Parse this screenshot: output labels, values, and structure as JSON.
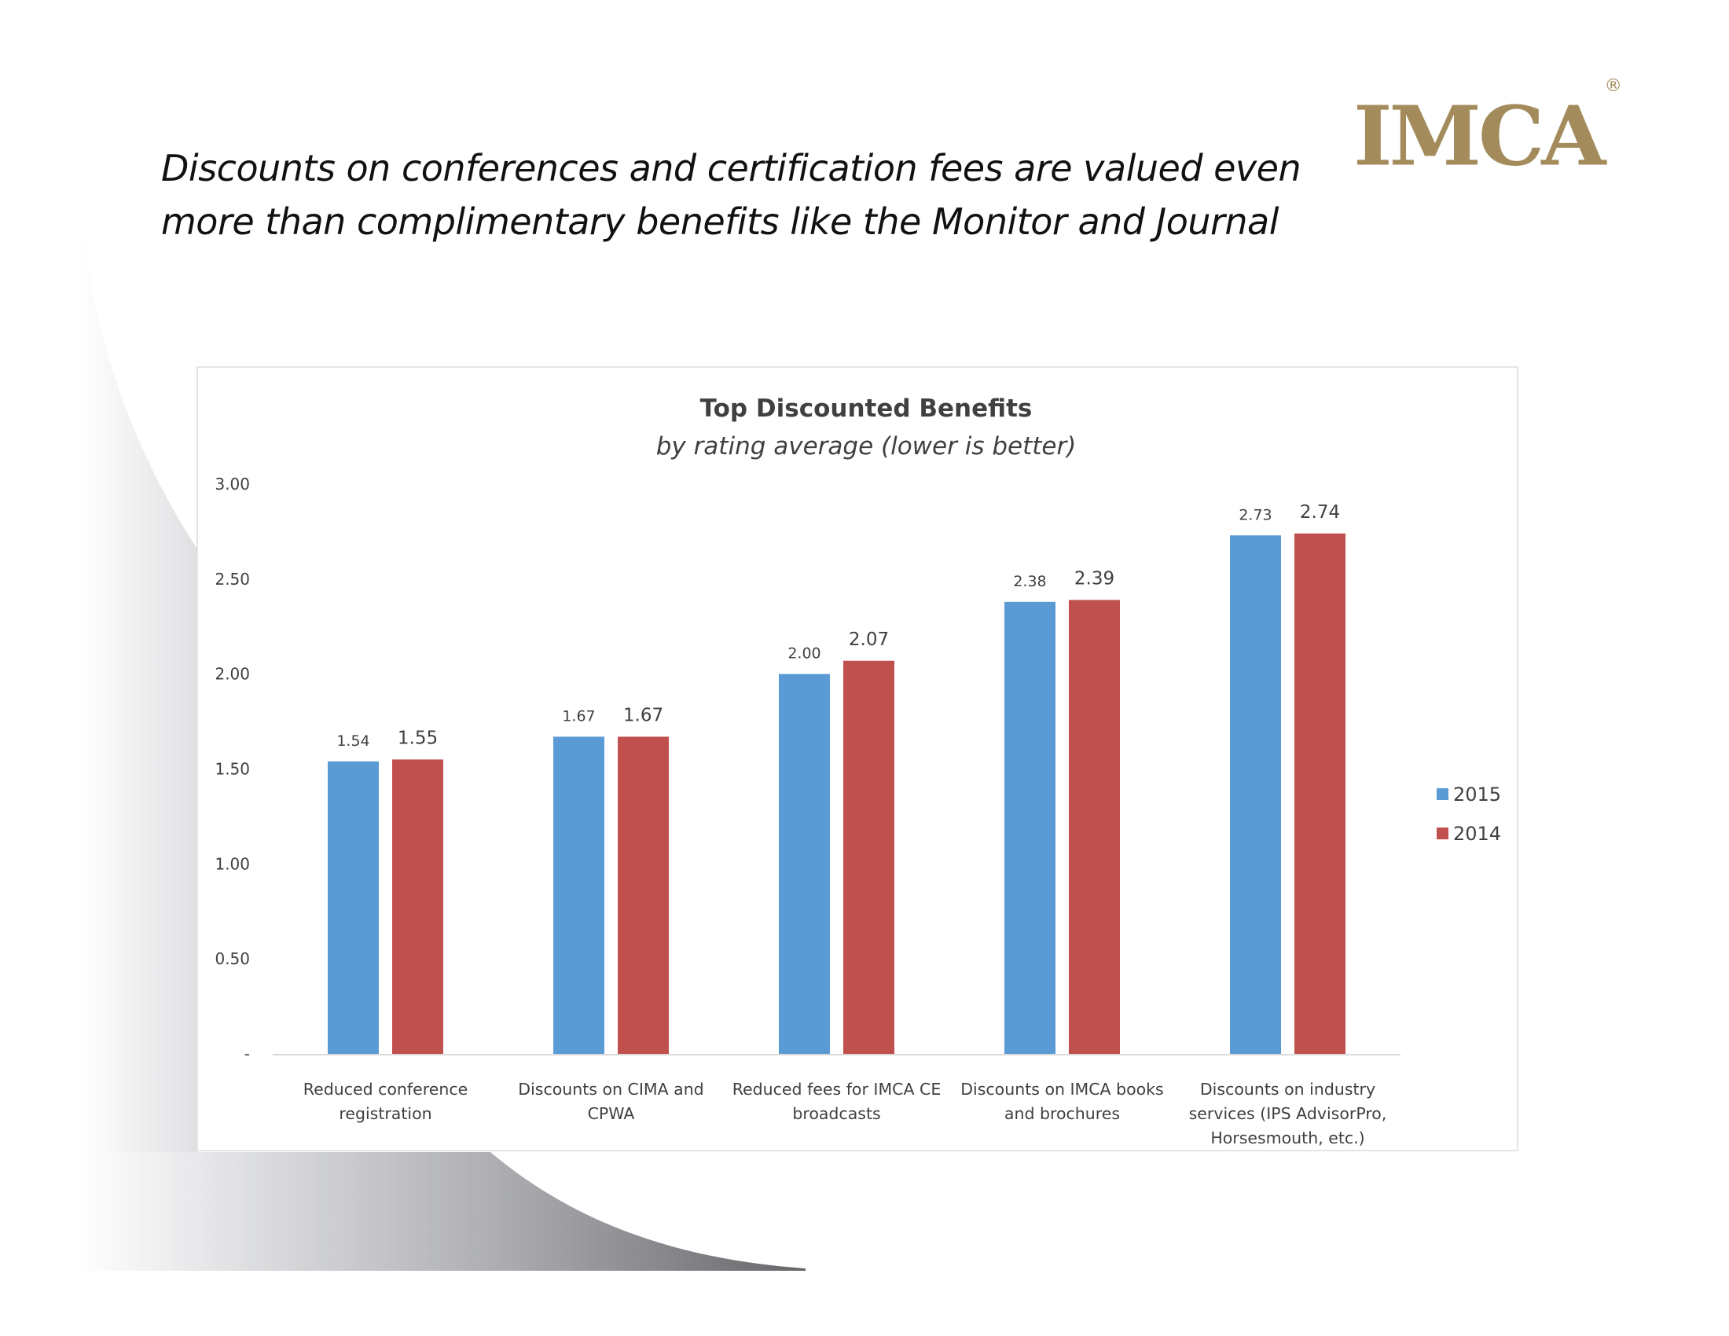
{
  "slide": {
    "title_lines": [
      "Discounts on conferences and certification fees are valued even",
      "more than complimentary benefits like the Monitor and Journal"
    ],
    "logo_text": "IMCA",
    "logo_mark": "®"
  },
  "colors": {
    "series_2015": "#5b9bd5",
    "series_2014": "#c0504d",
    "logo": "#a38b5c",
    "text": "#404040"
  },
  "chart_data": {
    "type": "bar",
    "title": "Top Discounted Benefits",
    "subtitle": "by rating average (lower is better)",
    "xlabel": "",
    "ylabel": "",
    "ylim": [
      0,
      3
    ],
    "yticks": [
      0,
      0.5,
      1.0,
      1.5,
      2.0,
      2.5,
      3.0
    ],
    "ytick_labels": [
      "-",
      "0.50",
      "1.00",
      "1.50",
      "2.00",
      "2.50",
      "3.00"
    ],
    "grid": false,
    "legend_position": "right",
    "categories": [
      [
        "Reduced conference",
        "registration"
      ],
      [
        "Discounts on CIMA and",
        "CPWA"
      ],
      [
        "Reduced fees for IMCA CE",
        "broadcasts"
      ],
      [
        "Discounts on IMCA books",
        "and brochures"
      ],
      [
        "Discounts on industry",
        "services (IPS AdvisorPro,",
        "Horsesmouth, etc.)"
      ]
    ],
    "series": [
      {
        "name": "2015",
        "values": [
          1.54,
          1.67,
          2.0,
          2.38,
          2.73
        ],
        "labels": [
          "1.54",
          "1.67",
          "2.00",
          "2.38",
          "2.73"
        ]
      },
      {
        "name": "2014",
        "values": [
          1.55,
          1.67,
          2.07,
          2.39,
          2.74
        ],
        "labels": [
          "1.55",
          "1.67",
          "2.07",
          "2.39",
          "2.74"
        ]
      }
    ]
  }
}
